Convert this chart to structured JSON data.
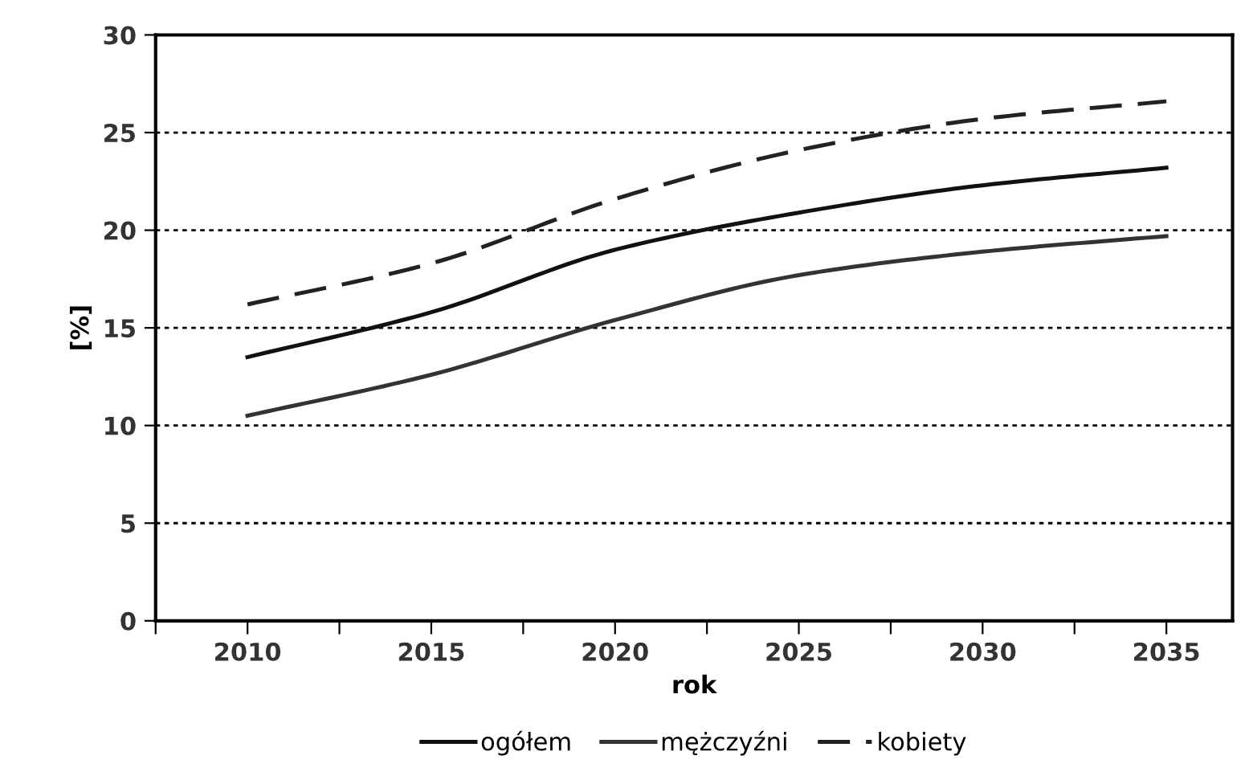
{
  "chart_data": {
    "type": "line",
    "xlabel": "rok",
    "ylabel": "[%]",
    "x": [
      2010,
      2015,
      2020,
      2025,
      2030,
      2035
    ],
    "xlim": [
      2007.5,
      2036.8
    ],
    "xticks": [
      {
        "value": 2007.5,
        "label": null
      },
      2010,
      {
        "value": 2012.5,
        "label": null
      },
      2015,
      {
        "value": 2017.5,
        "label": null
      },
      2020,
      {
        "value": 2022.5,
        "label": null
      },
      2025,
      {
        "value": 2027.5,
        "label": null
      },
      2030,
      {
        "value": 2032.5,
        "label": null
      },
      2035
    ],
    "ylim": [
      0,
      30
    ],
    "yticks": [
      0,
      5,
      10,
      15,
      20,
      25,
      30
    ],
    "grid": "y",
    "legend": "bottom",
    "marker": "none",
    "series": [
      {
        "name": "ogółem",
        "color": "#111111",
        "line_style": "solid",
        "values": [
          13.5,
          15.8,
          19.0,
          20.9,
          22.3,
          23.2
        ]
      },
      {
        "name": "mężczyźni",
        "color": "#333333",
        "line_style": "solid",
        "values": [
          10.5,
          12.6,
          15.4,
          17.7,
          18.9,
          19.7
        ]
      },
      {
        "name": "kobiety",
        "color": "#222222",
        "line_style": "dashed",
        "values": [
          16.2,
          18.3,
          21.6,
          24.1,
          25.7,
          26.6
        ]
      }
    ]
  }
}
